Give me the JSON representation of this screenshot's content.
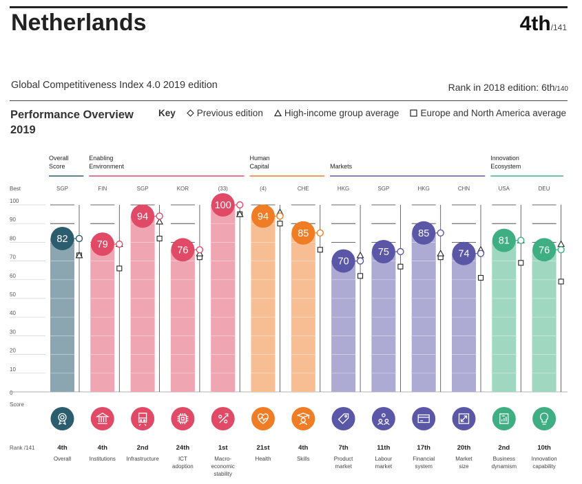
{
  "header": {
    "country": "Netherlands",
    "rank": "4th",
    "rank_of": "/141",
    "edition": "Global Competitiveness Index 4.0 2019 edition",
    "rank_2018_label": "Rank in 2018 edition: 6th",
    "rank_2018_of": "/140"
  },
  "overview": {
    "title": "Performance Overview 2019",
    "key_label": "Key",
    "key_previous": "Previous edition",
    "key_highincome": "High-income group average",
    "key_region": "Europe and North America average"
  },
  "labels": {
    "best": "Best",
    "score": "Score",
    "rank_of": "Rank /141"
  },
  "colors": {
    "overall": "#2c5d6f",
    "enabling": "#e04a66",
    "human": "#ef7d26",
    "markets": "#5a57a7",
    "innovation": "#3fae82"
  },
  "chart_data": {
    "type": "bar",
    "ylim": [
      0,
      100
    ],
    "yticks": [
      0,
      10,
      20,
      30,
      40,
      50,
      60,
      70,
      80,
      90,
      100
    ],
    "groups": [
      {
        "name": "Overall Score",
        "pillars": [
          0
        ],
        "color_key": "overall"
      },
      {
        "name": "Enabling Environment",
        "pillars": [
          1,
          2,
          3,
          4
        ],
        "color_key": "enabling"
      },
      {
        "name": "Human Capital",
        "pillars": [
          5,
          6
        ],
        "color_key": "human"
      },
      {
        "name": "Markets",
        "pillars": [
          7,
          8,
          9,
          10
        ],
        "color_key": "markets"
      },
      {
        "name": "Innovation Ecosystem",
        "pillars": [
          11,
          12
        ],
        "color_key": "innovation"
      }
    ],
    "pillars": [
      {
        "name": "Overall",
        "best": "SGP",
        "score": 82,
        "previous": 82,
        "high_income": 73,
        "region": 73,
        "rank": "4th",
        "color_key": "overall",
        "icon": "award-medal-icon"
      },
      {
        "name": "Institutions",
        "best": "FIN",
        "score": 79,
        "previous": 79,
        "high_income": 79,
        "region": 66,
        "rank": "4th",
        "color_key": "enabling",
        "icon": "institution-building-icon"
      },
      {
        "name": "Infrastructure",
        "best": "SGP",
        "score": 94,
        "previous": 94,
        "high_income": 91,
        "region": 82,
        "rank": "2nd",
        "color_key": "enabling",
        "icon": "train-icon"
      },
      {
        "name": "ICT adoption",
        "best": "KOR",
        "score": 76,
        "previous": 76,
        "high_income": 74,
        "region": 72,
        "rank": "24th",
        "color_key": "enabling",
        "icon": "microchip-icon"
      },
      {
        "name": "Macro-economic stability",
        "best": "(33)",
        "score": 100,
        "previous": 100,
        "high_income": 95,
        "region": 95,
        "rank": "1st",
        "color_key": "enabling",
        "icon": "percent-icon"
      },
      {
        "name": "Health",
        "best": "(4)",
        "score": 94,
        "previous": 94,
        "high_income": 96,
        "region": 90,
        "rank": "21st",
        "color_key": "human",
        "icon": "heart-pulse-icon"
      },
      {
        "name": "Skills",
        "best": "CHE",
        "score": 85,
        "previous": 85,
        "high_income": null,
        "region": 76,
        "rank": "4th",
        "color_key": "human",
        "icon": "graduate-icon"
      },
      {
        "name": "Product market",
        "best": "HKG",
        "score": 70,
        "previous": 70,
        "high_income": 73,
        "region": 62,
        "rank": "7th",
        "color_key": "markets",
        "icon": "price-tag-icon"
      },
      {
        "name": "Labour market",
        "best": "SGP",
        "score": 75,
        "previous": 75,
        "high_income": null,
        "region": 67,
        "rank": "11th",
        "color_key": "markets",
        "icon": "people-network-icon"
      },
      {
        "name": "Financial system",
        "best": "HKG",
        "score": 85,
        "previous": 85,
        "high_income": 74,
        "region": 72,
        "rank": "17th",
        "color_key": "markets",
        "icon": "credit-card-icon"
      },
      {
        "name": "Market size",
        "best": "CHN",
        "score": 74,
        "previous": 74,
        "high_income": 76,
        "region": 61,
        "rank": "20th",
        "color_key": "markets",
        "icon": "expand-arrows-icon"
      },
      {
        "name": "Business dynamism",
        "best": "USA",
        "score": 81,
        "previous": 81,
        "high_income": 81,
        "region": 69,
        "rank": "2nd",
        "color_key": "innovation",
        "icon": "business-chart-icon"
      },
      {
        "name": "Innovation capability",
        "best": "DEU",
        "score": 76,
        "previous": 76,
        "high_income": 79,
        "region": 59,
        "rank": "10th",
        "color_key": "innovation",
        "icon": "lightbulb-icon"
      }
    ]
  }
}
